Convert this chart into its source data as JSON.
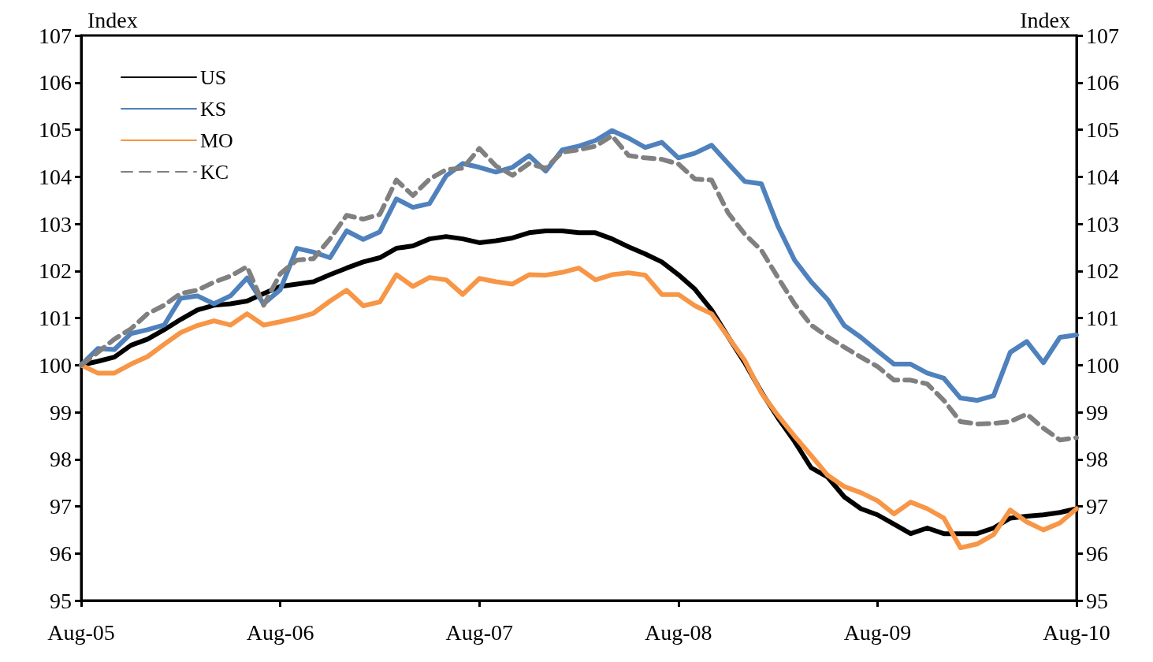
{
  "chart_data": {
    "type": "line",
    "ylabel": "Index",
    "y2label": "Index",
    "x": [
      "2005-08",
      "2005-09",
      "2005-10",
      "2005-11",
      "2005-12",
      "2006-01",
      "2006-02",
      "2006-03",
      "2006-04",
      "2006-05",
      "2006-06",
      "2006-07",
      "2006-08",
      "2006-09",
      "2006-10",
      "2006-11",
      "2006-12",
      "2007-01",
      "2007-02",
      "2007-03",
      "2007-04",
      "2007-05",
      "2007-06",
      "2007-07",
      "2007-08",
      "2007-09",
      "2007-10",
      "2007-11",
      "2007-12",
      "2008-01",
      "2008-02",
      "2008-03",
      "2008-04",
      "2008-05",
      "2008-06",
      "2008-07",
      "2008-08",
      "2008-09",
      "2008-10",
      "2008-11",
      "2008-12",
      "2009-01",
      "2009-02",
      "2009-03",
      "2009-04",
      "2009-05",
      "2009-06",
      "2009-07",
      "2009-08",
      "2009-09",
      "2009-10",
      "2009-11",
      "2009-12",
      "2010-01",
      "2010-02",
      "2010-03",
      "2010-04",
      "2010-05",
      "2010-06",
      "2010-07",
      "2010-08"
    ],
    "xlim": [
      "2005-08",
      "2010-08"
    ],
    "xticks": [
      {
        "value": "2005-08",
        "label": "Aug-05"
      },
      {
        "value": "2006-08",
        "label": "Aug-06"
      },
      {
        "value": "2007-08",
        "label": "Aug-07"
      },
      {
        "value": "2008-08",
        "label": "Aug-08"
      },
      {
        "value": "2009-08",
        "label": "Aug-09"
      },
      {
        "value": "2010-08",
        "label": "Aug-10"
      }
    ],
    "ylim": [
      95,
      107
    ],
    "yticks": [
      95,
      96,
      97,
      98,
      99,
      100,
      101,
      102,
      103,
      104,
      105,
      106,
      107
    ],
    "y2lim": [
      95,
      107
    ],
    "y2ticks": [
      95,
      96,
      97,
      98,
      99,
      100,
      101,
      102,
      103,
      104,
      105,
      106,
      107
    ],
    "grid": false,
    "legend": "top left",
    "marker": "none",
    "series": [
      {
        "name": "US",
        "color": "#000000",
        "values": [
          100,
          100.08,
          100.17,
          100.42,
          100.55,
          100.75,
          100.97,
          101.17,
          101.27,
          101.3,
          101.36,
          101.52,
          101.67,
          101.72,
          101.77,
          101.92,
          102.06,
          102.19,
          102.28,
          102.48,
          102.53,
          102.68,
          102.73,
          102.68,
          102.6,
          102.64,
          102.7,
          102.81,
          102.85,
          102.85,
          102.81,
          102.81,
          102.68,
          102.51,
          102.36,
          102.19,
          101.92,
          101.61,
          101.17,
          100.6,
          100.05,
          99.43,
          98.88,
          98.38,
          97.82,
          97.62,
          97.2,
          96.95,
          96.82,
          96.62,
          96.42,
          96.54,
          96.42,
          96.42,
          96.42,
          96.54,
          96.75,
          96.79,
          96.82,
          96.87,
          96.95
        ]
      },
      {
        "name": "KS",
        "color": "#4f81bd",
        "values": [
          100,
          100.35,
          100.33,
          100.67,
          100.75,
          100.85,
          101.42,
          101.47,
          101.3,
          101.47,
          101.85,
          101.3,
          101.6,
          102.48,
          102.4,
          102.28,
          102.85,
          102.67,
          102.83,
          103.53,
          103.35,
          103.43,
          104.02,
          104.28,
          104.2,
          104.1,
          104.2,
          104.45,
          104.12,
          104.57,
          104.65,
          104.77,
          104.98,
          104.82,
          104.62,
          104.73,
          104.4,
          104.5,
          104.67,
          104.28,
          103.9,
          103.85,
          102.95,
          102.23,
          101.77,
          101.39,
          100.84,
          100.59,
          100.3,
          100.02,
          100.02,
          99.83,
          99.72,
          99.3,
          99.25,
          99.35,
          100.27,
          100.5,
          100.05,
          100.59,
          100.64
        ]
      },
      {
        "name": "MO",
        "color": "#f79646",
        "values": [
          100,
          99.83,
          99.83,
          100.02,
          100.18,
          100.44,
          100.69,
          100.84,
          100.94,
          100.85,
          101.09,
          100.85,
          100.92,
          101.0,
          101.1,
          101.36,
          101.59,
          101.26,
          101.34,
          101.92,
          101.67,
          101.86,
          101.81,
          101.5,
          101.84,
          101.77,
          101.72,
          101.92,
          101.91,
          101.97,
          102.06,
          101.81,
          101.92,
          101.96,
          101.91,
          101.5,
          101.5,
          101.26,
          101.09,
          100.6,
          100.1,
          99.41,
          98.93,
          98.49,
          98.08,
          97.66,
          97.42,
          97.29,
          97.12,
          96.84,
          97.09,
          96.95,
          96.75,
          96.12,
          96.2,
          96.4,
          96.92,
          96.67,
          96.5,
          96.65,
          96.95
        ]
      },
      {
        "name": "KC",
        "color": "#808080",
        "line_style": "dashed",
        "values": [
          100,
          100.27,
          100.55,
          100.77,
          101.09,
          101.27,
          101.52,
          101.59,
          101.76,
          101.89,
          102.09,
          101.27,
          101.94,
          102.23,
          102.26,
          102.68,
          103.18,
          103.1,
          103.2,
          103.93,
          103.6,
          103.95,
          104.15,
          104.18,
          104.6,
          104.23,
          104.03,
          104.28,
          104.18,
          104.52,
          104.57,
          104.65,
          104.87,
          104.45,
          104.4,
          104.37,
          104.27,
          103.95,
          103.93,
          103.23,
          102.78,
          102.44,
          101.86,
          101.3,
          100.85,
          100.6,
          100.38,
          100.17,
          99.97,
          99.68,
          99.68,
          99.6,
          99.25,
          98.8,
          98.75,
          98.76,
          98.8,
          98.96,
          98.66,
          98.41,
          98.46
        ]
      }
    ]
  }
}
